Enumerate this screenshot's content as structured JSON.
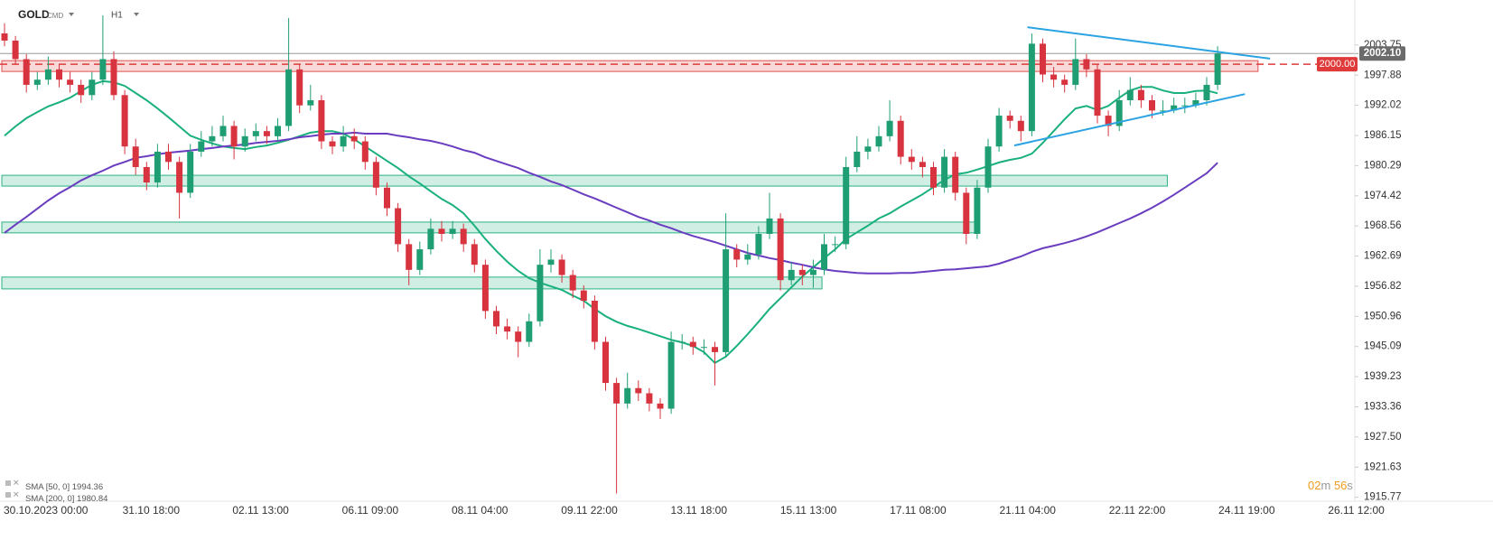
{
  "chart_data": {
    "type": "candlestick",
    "symbol": "GOLD",
    "symbol_tag": "CMD",
    "timeframe": "H1",
    "ylim": [
      1915.0,
      2012.5
    ],
    "yticks": [
      2003.75,
      1997.88,
      1992.02,
      1986.15,
      1980.29,
      1974.42,
      1968.56,
      1962.69,
      1956.82,
      1950.96,
      1945.09,
      1939.23,
      1933.36,
      {
        "value": 1927.5,
        "label": "1927.50"
      },
      1921.63,
      1915.77
    ],
    "x_labels": [
      "30.10.2023 00:00",
      "31.10 18:00",
      "02.11 13:00",
      "06.11 09:00",
      "08.11 04:00",
      "09.11 22:00",
      "13.11 18:00",
      "15.11 13:00",
      "17.11 08:00",
      "21.11 04:00",
      "22.11 22:00",
      "24.11 19:00",
      "26.11 12:00"
    ],
    "grid": false,
    "up_color": "#1f9e74",
    "down_color": "#d8343f",
    "ohlc": [
      [
        2006,
        2008,
        2003.5,
        2004.6
      ],
      [
        2004.6,
        2005.5,
        2000,
        2001
      ],
      [
        2001,
        2002,
        1994.5,
        1996
      ],
      [
        1996,
        1998.5,
        1995,
        1997
      ],
      [
        1997,
        2001.5,
        1996,
        1999
      ],
      [
        1999,
        2000,
        1995.5,
        1997
      ],
      [
        1997,
        1998.5,
        1994.5,
        1996
      ],
      [
        1996,
        1997,
        1992.5,
        1994
      ],
      [
        1994,
        1998.5,
        1993,
        1997
      ],
      [
        1997,
        2009.5,
        1996,
        2001
      ],
      [
        2001,
        2002.5,
        1993,
        1994
      ],
      [
        1994,
        1995,
        1982.5,
        1984
      ],
      [
        1984,
        1985.5,
        1978.5,
        1980
      ],
      [
        1980,
        1981,
        1975.5,
        1977
      ],
      [
        1977,
        1984.5,
        1976,
        1983
      ],
      [
        1983,
        1984.5,
        1979.5,
        1981
      ],
      [
        1981,
        1982,
        1970,
        1975
      ],
      [
        1975,
        1984.5,
        1974,
        1983
      ],
      [
        1983,
        1987,
        1982,
        1985
      ],
      [
        1985,
        1988,
        1984,
        1986
      ],
      [
        1986,
        1990,
        1985,
        1988
      ],
      [
        1988,
        1989,
        1981.5,
        1984
      ],
      [
        1984,
        1987.5,
        1983,
        1986
      ],
      [
        1986,
        1988.5,
        1985,
        1987
      ],
      [
        1987,
        1988,
        1984.5,
        1986
      ],
      [
        1986,
        1989.5,
        1985,
        1988
      ],
      [
        1988,
        2009,
        1987,
        1999
      ],
      [
        1999,
        2000,
        1990.5,
        1992
      ],
      [
        1992,
        1996,
        1991,
        1993
      ],
      [
        1993,
        1994,
        1983.5,
        1985
      ],
      [
        1985,
        1986,
        1982.5,
        1984
      ],
      [
        1984,
        1988,
        1983,
        1986
      ],
      [
        1986,
        1987.5,
        1983.5,
        1985
      ],
      [
        1985,
        1986,
        1979.5,
        1981
      ],
      [
        1981,
        1982,
        1974.5,
        1976
      ],
      [
        1976,
        1977,
        1970.5,
        1972
      ],
      [
        1972,
        1973,
        1963.5,
        1965
      ],
      [
        1965,
        1966,
        1957,
        1960
      ],
      [
        1960,
        1965.5,
        1959,
        1964
      ],
      [
        1964,
        1970,
        1963,
        1968
      ],
      [
        1968,
        1969.5,
        1965.5,
        1967
      ],
      [
        1967,
        1969.5,
        1966,
        1968
      ],
      [
        1968,
        1969,
        1963.5,
        1965
      ],
      [
        1965,
        1966,
        1959.5,
        1961
      ],
      [
        1961,
        1962,
        1950.5,
        1952
      ],
      [
        1952,
        1953,
        1947.5,
        1949
      ],
      [
        1949,
        1950.5,
        1946.5,
        1948
      ],
      [
        1948,
        1949,
        1943,
        1946
      ],
      [
        1946,
        1951.5,
        1945,
        1950
      ],
      [
        1950,
        1964,
        1949,
        1961
      ],
      [
        1961,
        1964,
        1959.5,
        1962
      ],
      [
        1962,
        1963,
        1957.5,
        1959
      ],
      [
        1959,
        1960,
        1954.5,
        1956
      ],
      [
        1956,
        1957,
        1952.5,
        1954
      ],
      [
        1954,
        1955,
        1944.5,
        1946
      ],
      [
        1946,
        1947,
        1936.5,
        1938
      ],
      [
        1938,
        1939,
        1916.5,
        1934
      ],
      [
        1934,
        1940,
        1933,
        1937
      ],
      [
        1937,
        1938.5,
        1934.5,
        1936
      ],
      [
        1936,
        1937,
        1932.5,
        1934
      ],
      [
        1934,
        1935,
        1931,
        1933
      ],
      [
        1933,
        1948,
        1932,
        1946
      ],
      [
        1946,
        1947.5,
        1944.5,
        1946
      ],
      [
        1946,
        1947,
        1943.5,
        1945
      ],
      [
        1945,
        1946.5,
        1943.5,
        1945
      ],
      [
        1945,
        1946,
        1937.5,
        1944
      ],
      [
        1944,
        1971,
        1943,
        1964
      ],
      [
        1964,
        1965,
        1960.5,
        1962
      ],
      [
        1962,
        1965,
        1961,
        1963
      ],
      [
        1963,
        1968.5,
        1962,
        1967
      ],
      [
        1967,
        1975,
        1966,
        1970
      ],
      [
        1970,
        1971,
        1956,
        1958
      ],
      [
        1958,
        1961.5,
        1957,
        1960
      ],
      [
        1960,
        1961,
        1957,
        1959
      ],
      [
        1959,
        1962,
        1956.5,
        1960
      ],
      [
        1960,
        1967,
        1959,
        1965
      ],
      [
        1965,
        1966.5,
        1963.5,
        1965
      ],
      [
        1965,
        1982,
        1964,
        1980
      ],
      [
        1980,
        1986,
        1979,
        1983
      ],
      [
        1983,
        1985.5,
        1981.5,
        1984
      ],
      [
        1984,
        1988,
        1983,
        1986
      ],
      [
        1986,
        1993,
        1985,
        1989
      ],
      [
        1989,
        1990,
        1980.5,
        1982
      ],
      [
        1982,
        1983.5,
        1979.5,
        1981
      ],
      [
        1981,
        1982,
        1978,
        1980
      ],
      [
        1980,
        1981,
        1974.5,
        1976
      ],
      [
        1976,
        1983.5,
        1975,
        1982
      ],
      [
        1982,
        1983,
        1973.5,
        1975
      ],
      [
        1975,
        1976,
        1965,
        1967
      ],
      [
        1967,
        1977.5,
        1966,
        1976
      ],
      [
        1976,
        1985.5,
        1975,
        1984
      ],
      [
        1984,
        1991.5,
        1983,
        1990
      ],
      [
        1990,
        1991,
        1987.5,
        1989
      ],
      [
        1989,
        1990,
        1985,
        1987
      ],
      [
        1987,
        2006,
        1986,
        2004
      ],
      [
        2004,
        2005,
        1996.5,
        1998
      ],
      [
        1998,
        1999.5,
        1995.5,
        1997
      ],
      [
        1997,
        1998,
        1994.5,
        1996
      ],
      [
        1996,
        2005,
        1995,
        2001
      ],
      [
        2001,
        2002,
        1997.5,
        1999
      ],
      [
        1999,
        2000,
        1988.5,
        1990
      ],
      [
        1990,
        1991,
        1986,
        1988
      ],
      [
        1988,
        1995,
        1987,
        1993
      ],
      [
        1993,
        1997.5,
        1992,
        1995
      ],
      [
        1995,
        1996,
        1991.5,
        1993
      ],
      [
        1993,
        1994,
        1989.5,
        1991
      ],
      [
        1991,
        1993,
        1990,
        1991
      ],
      [
        1991,
        1993.5,
        1990.5,
        1992
      ],
      [
        1992,
        1993.5,
        1990.5,
        1992
      ],
      [
        1992,
        1994.5,
        1991.5,
        1993
      ],
      [
        1993,
        1997.5,
        1992,
        1996
      ],
      [
        1996,
        2003.5,
        1995,
        2002.1
      ]
    ],
    "series": [
      {
        "name": "SMA [50, 0]",
        "last_value": 1994.36,
        "color": "#19b07d",
        "values": [
          1986.1,
          1987.9,
          1989.5,
          1990.7,
          1991.8,
          1992.6,
          1993.5,
          1994.8,
          1996.0,
          1996.7,
          1996.5,
          1995.8,
          1994.4,
          1993.0,
          1991.4,
          1989.7,
          1987.9,
          1986.1,
          1985.3,
          1984.6,
          1984.0,
          1983.7,
          1983.5,
          1983.9,
          1984.2,
          1984.7,
          1985.3,
          1986.0,
          1986.7,
          1987.0,
          1987.0,
          1986.5,
          1985.4,
          1984.0,
          1982.6,
          1981.2,
          1979.8,
          1978.2,
          1976.8,
          1975.3,
          1973.8,
          1972.6,
          1971.0,
          1968.6,
          1966.0,
          1963.7,
          1961.6,
          1959.8,
          1958.4,
          1957.5,
          1956.8,
          1956.1,
          1955.0,
          1954.0,
          1952.4,
          1951.0,
          1949.9,
          1949.1,
          1948.5,
          1947.8,
          1947.1,
          1946.4,
          1945.9,
          1945.2,
          1944.0,
          1941.9,
          1943.1,
          1945.2,
          1947.5,
          1949.9,
          1952.4,
          1954.5,
          1956.6,
          1958.7,
          1960.5,
          1962.3,
          1964.0,
          1966.0,
          1967.3,
          1968.6,
          1970.0,
          1971.0,
          1972.3,
          1973.5,
          1974.7,
          1976.1,
          1977.5,
          1978.6,
          1978.9,
          1979.5,
          1980.2,
          1980.9,
          1981.4,
          1981.8,
          1982.6,
          1984.7,
          1987.0,
          1989.3,
          1991.4,
          1991.9,
          1991.1,
          1991.9,
          1993.5,
          1994.9,
          1995.6,
          1995.6,
          1994.9,
          1994.4,
          1994.4,
          1994.8,
          1994.9,
          1994.36
        ]
      },
      {
        "name": "SMA [200, 0]",
        "last_value": 1980.84,
        "color": "#6a3dc0",
        "values": [
          1967.2,
          1968.8,
          1970.3,
          1971.9,
          1973.5,
          1974.9,
          1976.1,
          1977.4,
          1978.4,
          1979.3,
          1980.3,
          1981.0,
          1981.8,
          1982.1,
          1982.5,
          1982.8,
          1983.0,
          1983.2,
          1983.5,
          1983.7,
          1984.0,
          1984.2,
          1984.4,
          1984.7,
          1984.9,
          1985.1,
          1985.4,
          1985.8,
          1986.0,
          1986.3,
          1986.5,
          1986.5,
          1986.7,
          1986.5,
          1986.5,
          1986.5,
          1986.1,
          1985.8,
          1985.4,
          1985.1,
          1984.6,
          1984.0,
          1983.3,
          1982.8,
          1981.9,
          1981.2,
          1980.5,
          1979.8,
          1978.9,
          1978.1,
          1977.2,
          1976.5,
          1975.6,
          1974.7,
          1973.9,
          1973.0,
          1972.1,
          1971.2,
          1970.3,
          1969.6,
          1968.8,
          1968.1,
          1967.3,
          1966.6,
          1966.0,
          1965.4,
          1964.7,
          1964.0,
          1963.3,
          1962.8,
          1962.3,
          1961.9,
          1961.4,
          1961.0,
          1960.5,
          1960.1,
          1959.8,
          1959.6,
          1959.4,
          1959.3,
          1959.3,
          1959.3,
          1959.4,
          1959.4,
          1959.6,
          1959.8,
          1960.0,
          1960.1,
          1960.3,
          1960.5,
          1960.7,
          1961.2,
          1961.9,
          1962.6,
          1963.5,
          1964.2,
          1964.7,
          1965.2,
          1965.8,
          1966.5,
          1967.3,
          1968.2,
          1969.1,
          1970.0,
          1971.0,
          1972.1,
          1973.3,
          1974.6,
          1976.0,
          1977.4,
          1978.8,
          1980.84
        ]
      }
    ],
    "zones": [
      {
        "low": 1998.6,
        "high": 2000.7,
        "x_end": 114.7,
        "color": "#e0504f"
      },
      {
        "low": 1976.3,
        "high": 1978.4,
        "x_end": 106.4,
        "color": "#2bb383"
      },
      {
        "low": 1967.2,
        "high": 1969.3,
        "x_end": 88.8,
        "color": "#2bb383"
      },
      {
        "low": 1956.3,
        "high": 1958.6,
        "x_end": 74.8,
        "color": "#2bb383"
      }
    ],
    "trendlines": [
      {
        "x": [
          93.6,
          115.8
        ],
        "y": [
          2007.2,
          2001.1
        ],
        "color": "#2aa3e2"
      },
      {
        "x": [
          92.4,
          113.5
        ],
        "y": [
          1984.2,
          1994.2
        ],
        "color": "#2aa3e2"
      }
    ],
    "price_level": {
      "value": 2000,
      "label": "2000.00",
      "color": "#e03b3b"
    },
    "current_price": {
      "value": 2002.1,
      "label": "2002.10",
      "color": "#6b6b6b"
    },
    "countdown": {
      "minutes": "02",
      "minutes_unit": "m",
      "seconds": "56",
      "seconds_unit": "s"
    }
  }
}
